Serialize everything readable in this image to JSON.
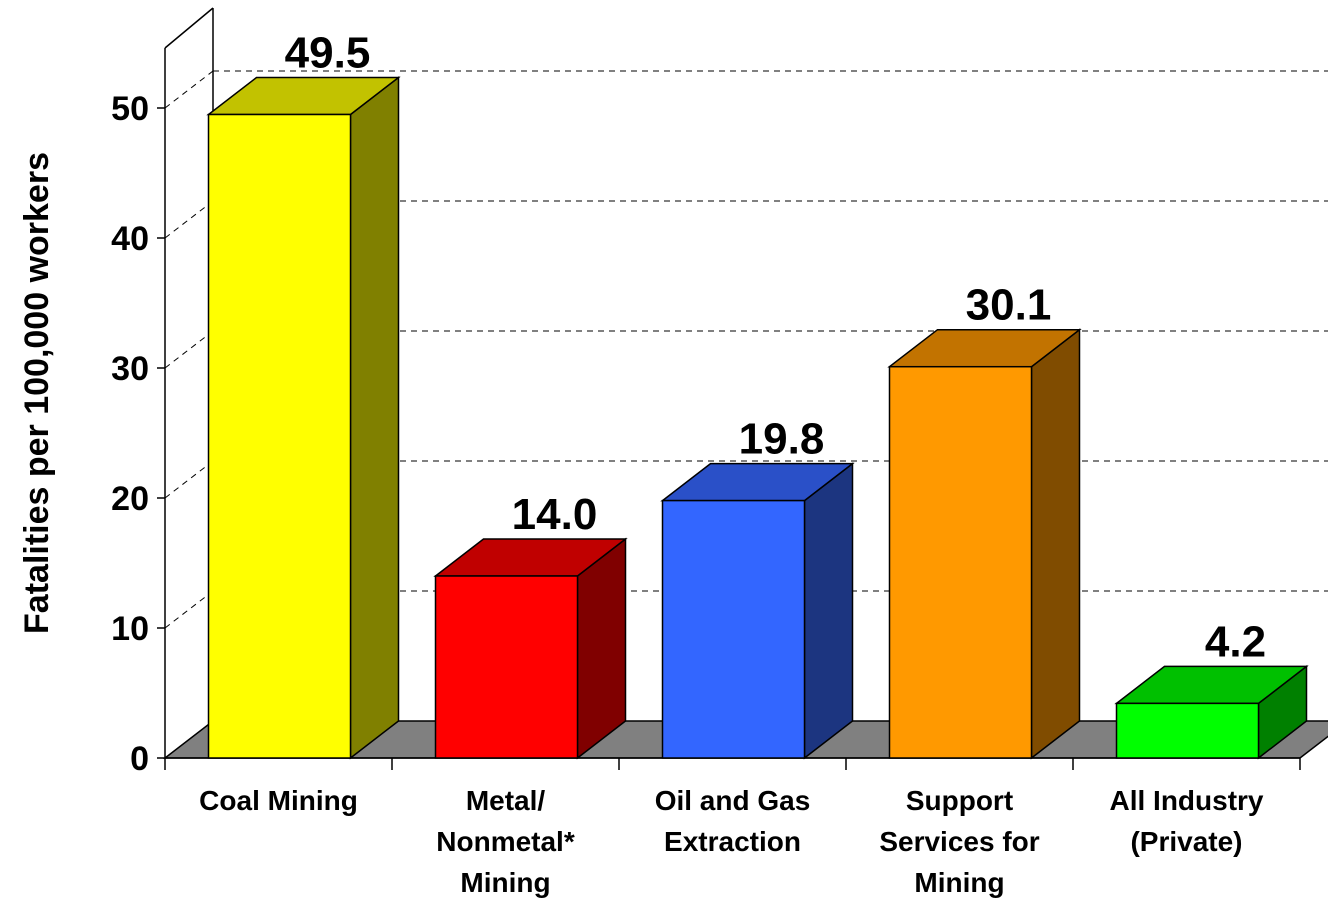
{
  "chart_data": {
    "type": "bar",
    "title": "",
    "ylabel": "Fatalities per 100,000 workers",
    "xlabel": "",
    "ylim": [
      0,
      50
    ],
    "yticks": [
      "0",
      "10",
      "20",
      "30",
      "40",
      "50"
    ],
    "categories": [
      [
        "Coal Mining"
      ],
      [
        "Metal/",
        "Nonmetal*",
        "Mining"
      ],
      [
        "Oil and Gas",
        "Extraction"
      ],
      [
        "Support",
        "Services for",
        "Mining"
      ],
      [
        "All Industry",
        "(Private)"
      ]
    ],
    "values": [
      49.5,
      14.0,
      19.8,
      30.1,
      4.2
    ],
    "value_labels": [
      "49.5",
      "14.0",
      "19.8",
      "30.1",
      "4.2"
    ],
    "grid": true,
    "style": "3d",
    "colors": {
      "front": [
        "#ffff00",
        "#ff0000",
        "#3366ff",
        "#ff9900",
        "#00ff00"
      ],
      "top": [
        "#c2c200",
        "#c00000",
        "#2a50c8",
        "#c27300",
        "#00c000"
      ],
      "side": [
        "#808000",
        "#800000",
        "#1c3580",
        "#804c00",
        "#008000"
      ],
      "floor": "#808080",
      "grid": "#000000"
    }
  }
}
